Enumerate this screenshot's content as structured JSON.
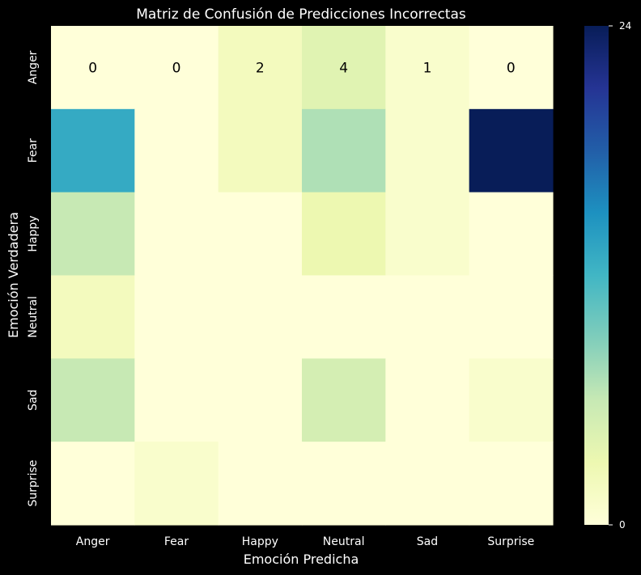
{
  "chart_data": {
    "type": "heatmap",
    "title": "Matriz de Confusión de Predicciones Incorrectas",
    "xlabel": "Emoción Predicha",
    "ylabel": "Emoción Verdadera",
    "x_categories": [
      "Anger",
      "Fear",
      "Happy",
      "Neutral",
      "Sad",
      "Surprise"
    ],
    "y_categories": [
      "Anger",
      "Fear",
      "Happy",
      "Neutral",
      "Sad",
      "Surprise"
    ],
    "values": [
      [
        0,
        0,
        2,
        4,
        1,
        0
      ],
      [
        13,
        0,
        2,
        7,
        1,
        24
      ],
      [
        6,
        0,
        0,
        3,
        1,
        0
      ],
      [
        2,
        0,
        0,
        0,
        0,
        0
      ],
      [
        6,
        0,
        0,
        5,
        0,
        1
      ],
      [
        0,
        1,
        0,
        0,
        0,
        0
      ]
    ],
    "annotated_rows": [
      0
    ],
    "colorbar": {
      "min": 0,
      "max": 24,
      "ticks": [
        0,
        24
      ]
    },
    "colormap": "YlGnBu",
    "background_color": "#000000",
    "text_color": "#ffffff"
  }
}
